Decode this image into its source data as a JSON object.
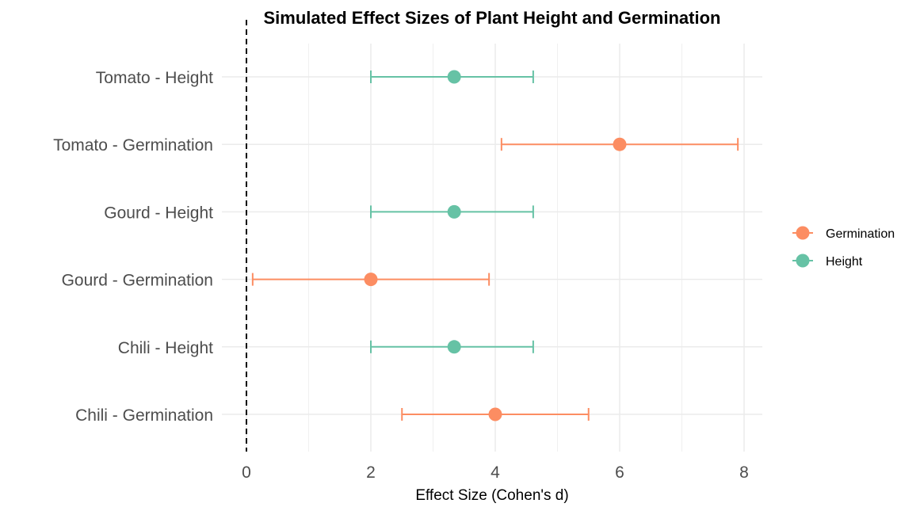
{
  "chart_data": {
    "type": "forest",
    "title": "Simulated Effect Sizes of Plant Height and Germination",
    "xlabel": "Effect Size (Cohen's d)",
    "ylabel": "",
    "xlim": [
      -0.4,
      8.3
    ],
    "x_ticks": [
      0,
      2,
      4,
      6,
      8
    ],
    "x_tick_labels": [
      "0",
      "2",
      "4",
      "6",
      "8"
    ],
    "reference_line": 0,
    "grid": true,
    "categories": [
      "Tomato - Height",
      "Tomato - Germination",
      "Gourd - Height",
      "Gourd - Germination",
      "Chili - Height",
      "Chili - Germination"
    ],
    "points": [
      {
        "label": "Tomato - Height",
        "group": "Height",
        "estimate": 3.34,
        "lower": 2.0,
        "upper": 4.61
      },
      {
        "label": "Tomato - Germination",
        "group": "Germination",
        "estimate": 6.0,
        "lower": 4.1,
        "upper": 7.9
      },
      {
        "label": "Gourd - Height",
        "group": "Height",
        "estimate": 3.34,
        "lower": 2.0,
        "upper": 4.61
      },
      {
        "label": "Gourd - Germination",
        "group": "Germination",
        "estimate": 2.0,
        "lower": 0.1,
        "upper": 3.9
      },
      {
        "label": "Chili - Height",
        "group": "Height",
        "estimate": 3.34,
        "lower": 2.0,
        "upper": 4.61
      },
      {
        "label": "Chili - Germination",
        "group": "Germination",
        "estimate": 4.0,
        "lower": 2.5,
        "upper": 5.5
      }
    ],
    "legend": {
      "position": "right",
      "entries": [
        {
          "name": "Germination",
          "color": "#FC8D62"
        },
        {
          "name": "Height",
          "color": "#66C2A5"
        }
      ]
    }
  }
}
